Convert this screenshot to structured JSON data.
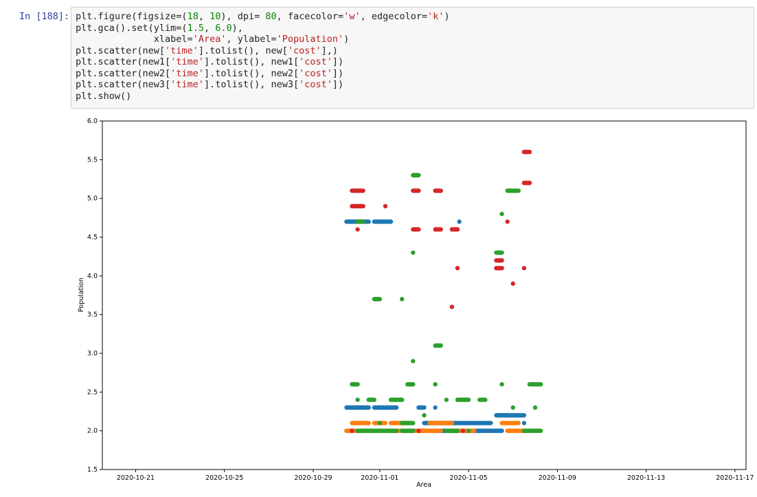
{
  "cell": {
    "prompt": "In [188]:",
    "code_lines": [
      [
        [
          "plt.figure(figsize=(",
          "t"
        ],
        [
          "18",
          "n"
        ],
        [
          ", ",
          "t"
        ],
        [
          "10",
          "n"
        ],
        [
          "), dpi= ",
          "t"
        ],
        [
          "80",
          "n"
        ],
        [
          ", facecolor=",
          "t"
        ],
        [
          "'w'",
          "s"
        ],
        [
          ", edgecolor=",
          "t"
        ],
        [
          "'k'",
          "s"
        ],
        [
          ")",
          "t"
        ]
      ],
      [
        [
          "plt.gca().set(ylim=(",
          "t"
        ],
        [
          "1.5",
          "n"
        ],
        [
          ", ",
          "t"
        ],
        [
          "6.0",
          "n"
        ],
        [
          "),",
          "t"
        ]
      ],
      [
        [
          "              xlabel=",
          "t"
        ],
        [
          "'Area'",
          "s"
        ],
        [
          ", ylabel=",
          "t"
        ],
        [
          "'Population'",
          "s"
        ],
        [
          ")",
          "t"
        ]
      ],
      [
        [
          "plt.scatter(new[",
          "t"
        ],
        [
          "'time'",
          "s"
        ],
        [
          "].tolist(), new[",
          "t"
        ],
        [
          "'cost'",
          "s"
        ],
        [
          "],)",
          "t"
        ]
      ],
      [
        [
          "plt.scatter(new1[",
          "t"
        ],
        [
          "'time'",
          "s"
        ],
        [
          "].tolist(), new1[",
          "t"
        ],
        [
          "'cost'",
          "s"
        ],
        [
          "])",
          "t"
        ]
      ],
      [
        [
          "plt.scatter(new2[",
          "t"
        ],
        [
          "'time'",
          "s"
        ],
        [
          "].tolist(), new2[",
          "t"
        ],
        [
          "'cost'",
          "s"
        ],
        [
          "])",
          "t"
        ]
      ],
      [
        [
          "plt.scatter(new3[",
          "t"
        ],
        [
          "'time'",
          "s"
        ],
        [
          "].tolist(), new3[",
          "t"
        ],
        [
          "'cost'",
          "s"
        ],
        [
          "])",
          "t"
        ]
      ],
      [
        [
          "plt.show()",
          "t"
        ]
      ]
    ]
  },
  "chart_data": {
    "type": "scatter",
    "title": "",
    "xlabel": "Area",
    "ylabel": "Population",
    "xlim": [
      "2020-10-19T12:00",
      "2020-11-17T12:00"
    ],
    "ylim": [
      1.5,
      6.0
    ],
    "x_ticks": [
      "2020-10-21",
      "2020-10-25",
      "2020-10-29",
      "2020-11-01",
      "2020-11-05",
      "2020-11-09",
      "2020-11-13",
      "2020-11-17"
    ],
    "y_ticks": [
      "1.5",
      "2.0",
      "2.5",
      "3.0",
      "3.5",
      "4.0",
      "4.5",
      "5.0",
      "5.5",
      "6.0"
    ],
    "grid": false,
    "legend": "none",
    "series": [
      {
        "color": "#1f77b4",
        "points": [
          {
            "x": "2020-10-30T12:00",
            "x_end": "2020-10-31T12:00",
            "y": 4.7
          },
          {
            "x": "2020-10-31T18:00",
            "x_end": "2020-11-01T12:00",
            "y": 4.7
          },
          {
            "x": "2020-11-04T14:00",
            "y": 4.7
          },
          {
            "x": "2020-10-30T12:00",
            "x_end": "2020-10-31T12:00",
            "y": 2.3
          },
          {
            "x": "2020-10-31T18:00",
            "x_end": "2020-11-01T18:00",
            "y": 2.3
          },
          {
            "x": "2020-11-02T18:00",
            "x_end": "2020-11-03T00:00",
            "y": 2.3
          },
          {
            "x": "2020-11-03T12:00",
            "y": 2.3
          },
          {
            "x": "2020-11-06T06:00",
            "x_end": "2020-11-07T12:00",
            "y": 2.2
          },
          {
            "x": "2020-11-03T00:00",
            "x_end": "2020-11-06T00:00",
            "y": 2.1
          },
          {
            "x": "2020-11-07T12:00",
            "y": 2.1
          },
          {
            "x": "2020-10-30T12:00",
            "y": 2.0
          },
          {
            "x": "2020-10-31T00:00",
            "y": 2.0
          },
          {
            "x": "2020-10-31T18:00",
            "y": 2.0
          },
          {
            "x": "2020-11-02T18:00",
            "x_end": "2020-11-03T00:00",
            "y": 2.0
          },
          {
            "x": "2020-11-03T12:00",
            "x_end": "2020-11-06T12:00",
            "y": 2.0
          },
          {
            "x": "2020-11-07T00:00",
            "y": 2.0
          }
        ]
      },
      {
        "color": "#ff7f0e",
        "points": [
          {
            "x": "2020-10-30T18:00",
            "x_end": "2020-10-31T12:00",
            "y": 2.1
          },
          {
            "x": "2020-10-31T18:00",
            "x_end": "2020-11-01T06:00",
            "y": 2.1
          },
          {
            "x": "2020-11-01T12:00",
            "x_end": "2020-11-02T06:00",
            "y": 2.1
          },
          {
            "x": "2020-11-03T06:00",
            "x_end": "2020-11-04T06:00",
            "y": 2.1
          },
          {
            "x": "2020-11-06T12:00",
            "x_end": "2020-11-07T06:00",
            "y": 2.1
          },
          {
            "x": "2020-10-30T12:00",
            "x_end": "2020-10-31T06:00",
            "y": 2.0
          },
          {
            "x": "2020-11-01T12:00",
            "x_end": "2020-11-02T06:00",
            "y": 2.0
          },
          {
            "x": "2020-11-02T12:00",
            "x_end": "2020-11-03T18:00",
            "y": 2.0
          },
          {
            "x": "2020-11-04T12:00",
            "x_end": "2020-11-05T06:00",
            "y": 2.0
          },
          {
            "x": "2020-11-06T18:00",
            "x_end": "2020-11-07T12:00",
            "y": 2.0
          }
        ]
      },
      {
        "color": "#2ca02c",
        "points": [
          {
            "x": "2020-10-31T00:00",
            "x_end": "2020-10-31T06:00",
            "y": 4.7
          },
          {
            "x": "2020-11-02T12:00",
            "x_end": "2020-11-02T18:00",
            "y": 5.3
          },
          {
            "x": "2020-11-06T12:00",
            "y": 4.8
          },
          {
            "x": "2020-11-06T18:00",
            "x_end": "2020-11-07T06:00",
            "y": 5.1
          },
          {
            "x": "2020-11-02T12:00",
            "y": 4.3
          },
          {
            "x": "2020-11-06T06:00",
            "x_end": "2020-11-06T12:00",
            "y": 4.3
          },
          {
            "x": "2020-10-31T18:00",
            "x_end": "2020-11-01T00:00",
            "y": 3.7
          },
          {
            "x": "2020-11-02T00:00",
            "y": 3.7
          },
          {
            "x": "2020-11-03T12:00",
            "x_end": "2020-11-03T18:00",
            "y": 3.1
          },
          {
            "x": "2020-11-02T12:00",
            "y": 2.9
          },
          {
            "x": "2020-10-30T18:00",
            "x_end": "2020-10-31T00:00",
            "y": 2.6
          },
          {
            "x": "2020-11-02T06:00",
            "x_end": "2020-11-02T12:00",
            "y": 2.6
          },
          {
            "x": "2020-11-03T12:00",
            "y": 2.6
          },
          {
            "x": "2020-11-06T12:00",
            "y": 2.6
          },
          {
            "x": "2020-11-07T18:00",
            "x_end": "2020-11-08T06:00",
            "y": 2.6
          },
          {
            "x": "2020-10-31T00:00",
            "y": 2.4
          },
          {
            "x": "2020-10-31T12:00",
            "x_end": "2020-10-31T18:00",
            "y": 2.4
          },
          {
            "x": "2020-11-01T12:00",
            "x_end": "2020-11-02T00:00",
            "y": 2.4
          },
          {
            "x": "2020-11-04T00:00",
            "y": 2.4
          },
          {
            "x": "2020-11-04T12:00",
            "x_end": "2020-11-05T00:00",
            "y": 2.4
          },
          {
            "x": "2020-11-05T12:00",
            "x_end": "2020-11-05T18:00",
            "y": 2.4
          },
          {
            "x": "2020-11-07T00:00",
            "y": 2.3
          },
          {
            "x": "2020-11-08T00:00",
            "y": 2.3
          },
          {
            "x": "2020-11-03T00:00",
            "y": 2.2
          },
          {
            "x": "2020-11-02T00:00",
            "x_end": "2020-11-02T12:00",
            "y": 2.1
          },
          {
            "x": "2020-11-01T00:00",
            "y": 2.1
          },
          {
            "x": "2020-10-31T00:00",
            "x_end": "2020-11-01T18:00",
            "y": 2.0
          },
          {
            "x": "2020-11-02T00:00",
            "x_end": "2020-11-02T12:00",
            "y": 2.0
          },
          {
            "x": "2020-11-04T00:00",
            "x_end": "2020-11-04T12:00",
            "y": 2.0
          },
          {
            "x": "2020-11-05T00:00",
            "y": 2.0
          },
          {
            "x": "2020-11-07T12:00",
            "x_end": "2020-11-08T06:00",
            "y": 2.0
          }
        ]
      },
      {
        "color": "#d62728",
        "points": [
          {
            "x": "2020-10-30T18:00",
            "x_end": "2020-10-31T06:00",
            "y": 5.1
          },
          {
            "x": "2020-11-02T12:00",
            "x_end": "2020-11-02T18:00",
            "y": 5.1
          },
          {
            "x": "2020-11-03T12:00",
            "x_end": "2020-11-03T18:00",
            "y": 5.1
          },
          {
            "x": "2020-10-30T18:00",
            "x_end": "2020-10-31T06:00",
            "y": 4.9
          },
          {
            "x": "2020-11-01T06:00",
            "y": 4.9
          },
          {
            "x": "2020-10-31T00:00",
            "y": 4.6
          },
          {
            "x": "2020-11-02T12:00",
            "x_end": "2020-11-02T18:00",
            "y": 4.6
          },
          {
            "x": "2020-11-03T12:00",
            "x_end": "2020-11-03T18:00",
            "y": 4.6
          },
          {
            "x": "2020-11-04T06:00",
            "x_end": "2020-11-04T12:00",
            "y": 4.6
          },
          {
            "x": "2020-11-06T18:00",
            "y": 4.7
          },
          {
            "x": "2020-11-06T06:00",
            "x_end": "2020-11-06T12:00",
            "y": 4.2
          },
          {
            "x": "2020-11-06T06:00",
            "x_end": "2020-11-06T12:00",
            "y": 4.1
          },
          {
            "x": "2020-11-04T12:00",
            "y": 4.1
          },
          {
            "x": "2020-11-07T12:00",
            "y": 4.1
          },
          {
            "x": "2020-11-07T00:00",
            "y": 3.9
          },
          {
            "x": "2020-11-04T06:00",
            "y": 3.6
          },
          {
            "x": "2020-11-07T12:00",
            "x_end": "2020-11-07T18:00",
            "y": 5.6
          },
          {
            "x": "2020-11-07T12:00",
            "x_end": "2020-11-07T18:00",
            "y": 5.2
          },
          {
            "x": "2020-10-30T18:00",
            "y": 2.0
          },
          {
            "x": "2020-11-02T18:00",
            "y": 2.0
          },
          {
            "x": "2020-11-04T18:00",
            "y": 2.0
          }
        ]
      }
    ]
  }
}
